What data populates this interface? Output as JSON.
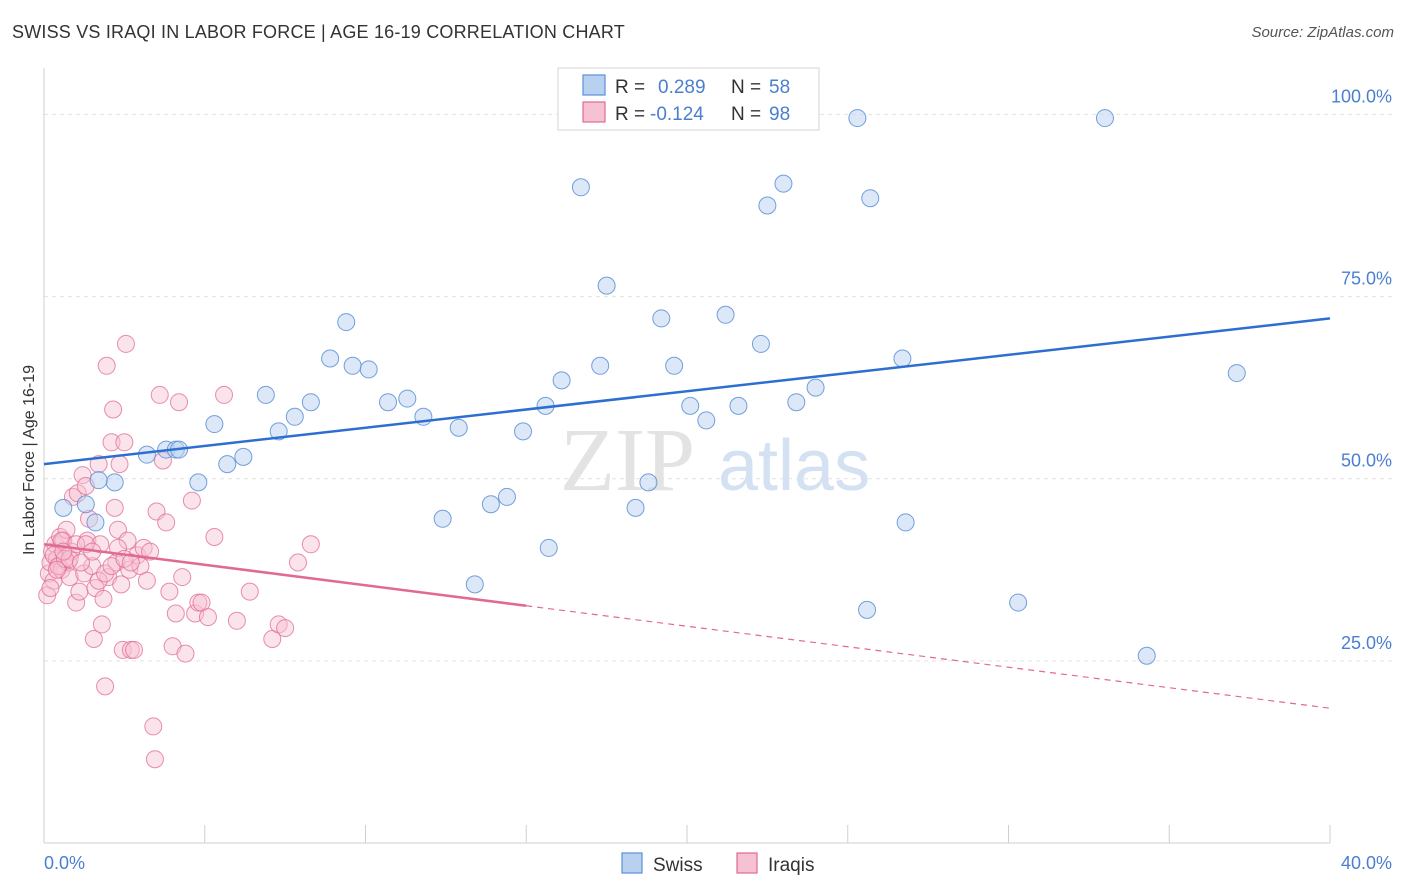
{
  "header": {
    "title": "SWISS VS IRAQI IN LABOR FORCE | AGE 16-19 CORRELATION CHART",
    "source": "Source: ZipAtlas.com"
  },
  "watermark": {
    "zip": "ZIP",
    "atlas": "atlas"
  },
  "legend": {
    "rows": [
      {
        "r_label": "R =",
        "r_value": "0.289",
        "n_label": "N =",
        "n_value": "58",
        "color": "#5b8fd6",
        "fill": "#b9d1f0"
      },
      {
        "r_label": "R =",
        "r_value": "-0.124",
        "n_label": "N =",
        "n_value": "98",
        "color": "#e06a93",
        "fill": "#f6c1d3"
      }
    ]
  },
  "bottom_legend": [
    {
      "label": "Swiss",
      "fill": "#b9d1f0",
      "stroke": "#5b8fd6"
    },
    {
      "label": "Iraqis",
      "fill": "#f6c1d3",
      "stroke": "#e06a93"
    }
  ],
  "colors": {
    "swiss_line": "#2d6fd1",
    "iraqi_line": "#e06a93",
    "swiss_point": "#5b8fd6",
    "iraqi_point": "#e06a93",
    "accent_text": "#4a7fd0"
  },
  "chart_data": {
    "type": "scatter",
    "xlabel": "",
    "ylabel": "In Labor Force | Age 16-19",
    "xlim": [
      0,
      40
    ],
    "ylim": [
      0,
      105
    ],
    "x_tick_labels": [
      {
        "value": 0,
        "label": "0.0%"
      },
      {
        "value": 40,
        "label": "40.0%"
      }
    ],
    "y_tick_labels": [
      {
        "value": 25,
        "label": "25.0%"
      },
      {
        "value": 50,
        "label": "50.0%"
      },
      {
        "value": 75,
        "label": "75.0%"
      },
      {
        "value": 100,
        "label": "100.0%"
      }
    ],
    "series": [
      {
        "name": "Swiss",
        "r": 0.289,
        "n": 58,
        "trend": {
          "x": [
            0,
            40
          ],
          "y": [
            52.0,
            72.0
          ],
          "solid_to": 40
        },
        "points": [
          [
            0.6,
            46
          ],
          [
            1.3,
            46.5
          ],
          [
            2.2,
            49.5
          ],
          [
            1.7,
            49.8
          ],
          [
            3.2,
            53.3
          ],
          [
            3.8,
            54
          ],
          [
            4.1,
            54
          ],
          [
            4.8,
            49.5
          ],
          [
            5.3,
            57.5
          ],
          [
            5.7,
            52
          ],
          [
            6.2,
            53
          ],
          [
            6.9,
            61.5
          ],
          [
            7.3,
            56.5
          ],
          [
            7.8,
            58.5
          ],
          [
            8.3,
            60.5
          ],
          [
            8.9,
            66.5
          ],
          [
            9.4,
            71.5
          ],
          [
            9.6,
            65.5
          ],
          [
            10.1,
            65
          ],
          [
            10.7,
            60.5
          ],
          [
            11.3,
            61
          ],
          [
            11.8,
            58.5
          ],
          [
            12.4,
            44.5
          ],
          [
            12.9,
            57
          ],
          [
            13.4,
            35.5
          ],
          [
            13.9,
            46.5
          ],
          [
            14.4,
            47.5
          ],
          [
            14.9,
            56.5
          ],
          [
            15.6,
            60
          ],
          [
            15.7,
            40.5
          ],
          [
            16.1,
            63.5
          ],
          [
            16.7,
            90
          ],
          [
            17.3,
            65.5
          ],
          [
            17.5,
            76.5
          ],
          [
            18.4,
            46
          ],
          [
            18.8,
            49.5
          ],
          [
            19.2,
            72
          ],
          [
            19.6,
            65.5
          ],
          [
            20.1,
            60
          ],
          [
            20.6,
            58
          ],
          [
            21.2,
            72.5
          ],
          [
            21.6,
            60
          ],
          [
            22.3,
            68.5
          ],
          [
            22.5,
            87.5
          ],
          [
            23.0,
            90.5
          ],
          [
            23.4,
            60.5
          ],
          [
            24.0,
            62.5
          ],
          [
            25.3,
            99.5
          ],
          [
            25.6,
            32
          ],
          [
            25.7,
            88.5
          ],
          [
            26.7,
            66.5
          ],
          [
            26.8,
            44
          ],
          [
            30.3,
            33
          ],
          [
            33.0,
            99.5
          ],
          [
            34.3,
            25.7
          ],
          [
            37.1,
            64.5
          ],
          [
            4.2,
            54
          ],
          [
            1.6,
            44
          ]
        ]
      },
      {
        "name": "Iraqis",
        "r": -0.124,
        "n": 98,
        "trend": {
          "x": [
            0,
            40
          ],
          "y": [
            41.0,
            18.5
          ],
          "solid_to": 15.0
        },
        "points": [
          [
            0.1,
            34
          ],
          [
            0.15,
            37
          ],
          [
            0.2,
            38.5
          ],
          [
            0.25,
            40
          ],
          [
            0.3,
            36
          ],
          [
            0.35,
            41
          ],
          [
            0.4,
            39
          ],
          [
            0.45,
            38
          ],
          [
            0.5,
            42
          ],
          [
            0.55,
            37.5
          ],
          [
            0.6,
            41.5
          ],
          [
            0.65,
            39
          ],
          [
            0.7,
            43
          ],
          [
            0.75,
            38.5
          ],
          [
            0.8,
            36.5
          ],
          [
            0.85,
            40
          ],
          [
            0.9,
            47.5
          ],
          [
            1.0,
            33
          ],
          [
            1.05,
            48
          ],
          [
            1.1,
            34.5
          ],
          [
            1.2,
            50.5
          ],
          [
            1.25,
            37
          ],
          [
            1.3,
            49
          ],
          [
            1.35,
            41.5
          ],
          [
            1.4,
            44.5
          ],
          [
            1.5,
            38
          ],
          [
            1.55,
            28
          ],
          [
            1.6,
            35
          ],
          [
            1.7,
            52
          ],
          [
            1.75,
            41
          ],
          [
            1.8,
            30
          ],
          [
            1.85,
            33.5
          ],
          [
            1.9,
            21.5
          ],
          [
            1.95,
            65.5
          ],
          [
            2.0,
            36.5
          ],
          [
            2.1,
            55
          ],
          [
            2.15,
            59.5
          ],
          [
            2.2,
            46
          ],
          [
            2.25,
            38.5
          ],
          [
            2.3,
            43
          ],
          [
            2.35,
            52
          ],
          [
            2.4,
            35.5
          ],
          [
            2.45,
            26.5
          ],
          [
            2.5,
            55
          ],
          [
            2.55,
            68.5
          ],
          [
            2.6,
            41.5
          ],
          [
            2.65,
            37.5
          ],
          [
            2.7,
            26.5
          ],
          [
            2.8,
            26.5
          ],
          [
            2.9,
            39.5
          ],
          [
            3.0,
            38
          ],
          [
            3.1,
            40.5
          ],
          [
            3.2,
            36
          ],
          [
            3.3,
            40
          ],
          [
            3.4,
            16
          ],
          [
            3.45,
            11.5
          ],
          [
            3.5,
            45.5
          ],
          [
            3.6,
            61.5
          ],
          [
            3.7,
            52.5
          ],
          [
            3.8,
            44
          ],
          [
            3.9,
            34.5
          ],
          [
            4.0,
            27
          ],
          [
            4.1,
            31.5
          ],
          [
            4.2,
            60.5
          ],
          [
            4.3,
            36.5
          ],
          [
            4.4,
            26
          ],
          [
            4.6,
            47
          ],
          [
            4.7,
            31.5
          ],
          [
            4.8,
            33
          ],
          [
            4.9,
            33
          ],
          [
            5.1,
            31
          ],
          [
            5.3,
            42
          ],
          [
            5.6,
            61.5
          ],
          [
            6.0,
            30.5
          ],
          [
            6.4,
            34.5
          ],
          [
            7.1,
            28
          ],
          [
            7.3,
            30
          ],
          [
            7.5,
            29.5
          ],
          [
            7.9,
            38.5
          ],
          [
            8.3,
            41
          ],
          [
            0.3,
            39.5
          ],
          [
            0.45,
            38
          ],
          [
            0.55,
            41.5
          ],
          [
            0.65,
            39
          ],
          [
            0.8,
            39
          ],
          [
            1.0,
            41
          ],
          [
            1.15,
            38.5
          ],
          [
            1.3,
            41
          ],
          [
            1.5,
            40
          ],
          [
            1.7,
            36
          ],
          [
            1.9,
            37
          ],
          [
            2.1,
            38
          ],
          [
            2.3,
            40.5
          ],
          [
            2.5,
            39
          ],
          [
            2.7,
            38.5
          ],
          [
            0.2,
            35
          ],
          [
            0.4,
            37.5
          ],
          [
            0.6,
            40
          ]
        ]
      }
    ],
    "grid": true,
    "legend_position": "top-center"
  }
}
